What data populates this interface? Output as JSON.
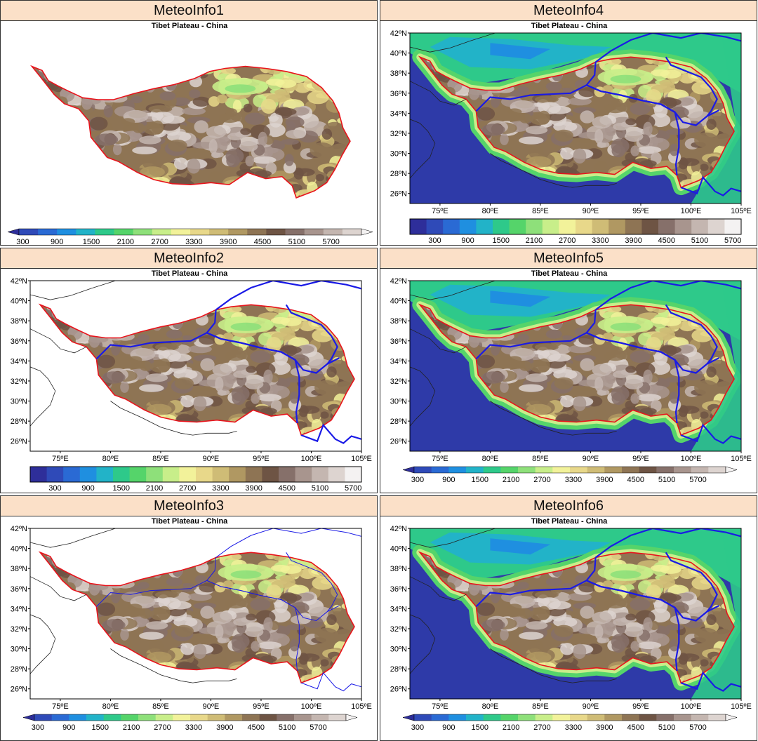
{
  "panels": [
    {
      "id": "p1",
      "title": "MeteoInfo1",
      "subtitle": "Tibet Plateau - China",
      "show_axes": false,
      "ocean": false,
      "boundaries": "none",
      "colorbar_style": "triangle",
      "colorbar_bg": false
    },
    {
      "id": "p4",
      "title": "MeteoInfo4",
      "subtitle": "Tibet Plateau - China",
      "show_axes": true,
      "ocean": true,
      "boundaries": "blue",
      "colorbar_style": "box",
      "colorbar_bg": false
    },
    {
      "id": "p2",
      "title": "MeteoInfo2",
      "subtitle": "Tibet Plateau - China",
      "show_axes": true,
      "ocean": false,
      "boundaries": "blue",
      "colorbar_style": "box",
      "colorbar_bg": false
    },
    {
      "id": "p5",
      "title": "MeteoInfo5",
      "subtitle": "Tibet Plateau - China",
      "show_axes": true,
      "ocean": true,
      "boundaries": "blue",
      "colorbar_style": "triangle",
      "colorbar_bg": false
    },
    {
      "id": "p3",
      "title": "MeteoInfo3",
      "subtitle": "Tibet Plateau - China",
      "show_axes": true,
      "ocean": false,
      "boundaries": "thin-blue",
      "colorbar_style": "triangle",
      "colorbar_bg": false
    },
    {
      "id": "p6",
      "title": "MeteoInfo6",
      "subtitle": "Tibet Plateau - China",
      "show_axes": true,
      "ocean": true,
      "boundaries": "blue",
      "colorbar_style": "triangle",
      "colorbar_bg": false
    }
  ],
  "axes": {
    "x_ticks": [
      "75ºE",
      "80ºE",
      "85ºE",
      "90ºE",
      "95ºE",
      "100ºE",
      "105ºE"
    ],
    "y_ticks": [
      "42ºN",
      "40ºN",
      "38ºN",
      "36ºN",
      "34ºN",
      "32ºN",
      "30ºN",
      "28ºN",
      "26ºN"
    ]
  },
  "colorbar": {
    "labels": [
      "300",
      "900",
      "1500",
      "2100",
      "2700",
      "3300",
      "3900",
      "4500",
      "5100",
      "5700"
    ],
    "colors": [
      "#2e2e9a",
      "#2f4ab8",
      "#2a6ad4",
      "#1f8fe0",
      "#22b3c8",
      "#2ec98a",
      "#55d46a",
      "#8ee07a",
      "#c8ee8a",
      "#f2f29a",
      "#e8d88a",
      "#cfbc76",
      "#b09862",
      "#8e7454",
      "#6e5444",
      "#86706a",
      "#a8958e",
      "#c4b6b0",
      "#ddd4d0",
      "#f4f2f2"
    ]
  }
}
